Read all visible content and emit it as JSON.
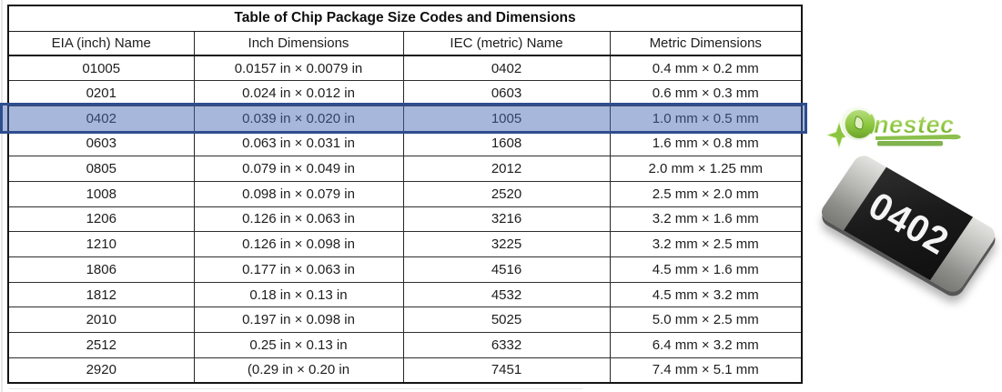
{
  "table": {
    "title": "Table of Chip Package Size Codes and Dimensions",
    "columns": [
      "EIA (inch) Name",
      "Inch Dimensions",
      "IEC (metric) Name",
      "Metric Dimensions"
    ],
    "rows": [
      [
        "01005",
        "0.0157 in × 0.0079 in",
        "0402",
        "0.4 mm × 0.2 mm"
      ],
      [
        "0201",
        "0.024 in × 0.012 in",
        "0603",
        "0.6 mm × 0.3 mm"
      ],
      [
        "0402",
        "0.039 in × 0.020 in",
        "1005",
        "1.0 mm × 0.5 mm"
      ],
      [
        "0603",
        "0.063 in × 0.031 in",
        "1608",
        "1.6 mm × 0.8 mm"
      ],
      [
        "0805",
        "0.079 in × 0.049 in",
        "2012",
        "2.0 mm × 1.25 mm"
      ],
      [
        "1008",
        "0.098 in × 0.079 in",
        "2520",
        "2.5 mm × 2.0 mm"
      ],
      [
        "1206",
        "0.126 in × 0.063 in",
        "3216",
        "3.2 mm × 1.6 mm"
      ],
      [
        "1210",
        "0.126 in × 0.098 in",
        "3225",
        "3.2 mm × 2.5 mm"
      ],
      [
        "1806",
        "0.177 in × 0.063 in",
        "4516",
        "4.5 mm × 1.6 mm"
      ],
      [
        "1812",
        "0.18 in × 0.13 in",
        "4532",
        "4.5 mm × 3.2 mm"
      ],
      [
        "2010",
        "0.197 in × 0.098 in",
        "5025",
        "5.0 mm × 2.5 mm"
      ],
      [
        "2512",
        "0.25 in × 0.13 in",
        "6332",
        "6.4 mm × 3.2 mm"
      ],
      [
        "2920",
        "(0.29 in × 0.20 in",
        "7451",
        "7.4 mm × 5.1 mm"
      ]
    ],
    "highlighted_row_index": 2,
    "highlight_fill": "rgba(70,105,180,0.48)",
    "highlight_border": "#2e4d8e"
  },
  "logo": {
    "text": "nestec",
    "main_green": "#7fb93a",
    "dark_green": "#5d9327",
    "light_green": "#c4e392"
  },
  "chip": {
    "label": "0402",
    "body_color": "#1a1a1a",
    "cap_color": "#a9a9a5"
  }
}
